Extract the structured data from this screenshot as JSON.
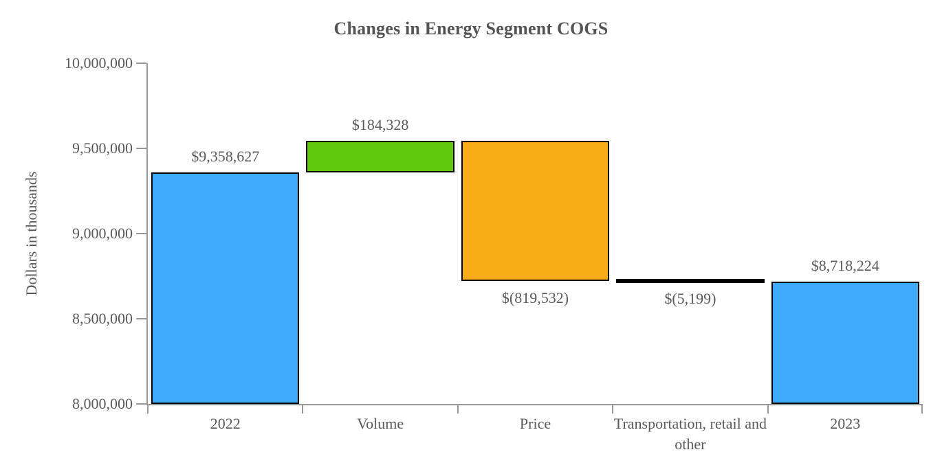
{
  "title": "Changes in Energy Segment COGS",
  "chart_data": {
    "type": "bar",
    "subtype": "waterfall",
    "title": "Changes in Energy Segment COGS",
    "xlabel": "",
    "ylabel": "Dollars in thousands",
    "ylim": [
      8000000,
      10000000
    ],
    "ytick_interval": 500000,
    "yticks": [
      {
        "value": 10000000,
        "label": "10,000,000"
      },
      {
        "value": 9500000,
        "label": "9,500,000"
      },
      {
        "value": 9000000,
        "label": "9,000,000"
      },
      {
        "value": 8500000,
        "label": "8,500,000"
      },
      {
        "value": 8000000,
        "label": "8,000,000"
      }
    ],
    "categories": [
      "2022",
      "Volume",
      "Price",
      "Transportation, retail and other",
      "2023"
    ],
    "steps": [
      {
        "category": "2022",
        "kind": "total",
        "value": 9358627,
        "label": "$9,358,627",
        "color": "#3FA9FA",
        "label_position": "above"
      },
      {
        "category": "Volume",
        "kind": "increase",
        "value": 184328,
        "label": "$184,328",
        "color": "#5EC90D",
        "label_position": "above"
      },
      {
        "category": "Price",
        "kind": "decrease",
        "value": -819532,
        "label": "$(819,532)",
        "color": "#F8AC18",
        "label_position": "below"
      },
      {
        "category": "Transportation, retail and other",
        "kind": "decrease",
        "value": -5199,
        "label": "$(5,199)",
        "color": "#000000",
        "label_position": "below"
      },
      {
        "category": "2023",
        "kind": "total",
        "value": 8718224,
        "label": "$8,718,224",
        "color": "#3FA9FA",
        "label_position": "above"
      }
    ],
    "grid": false,
    "legend": false,
    "accent_colors": {
      "total_bar": "#3FA9FA",
      "increase_bar": "#5EC90D",
      "decrease_bar": "#F8AC18",
      "small_decrease_bar": "#000000",
      "axis": "#999999",
      "text": "#595959"
    }
  }
}
